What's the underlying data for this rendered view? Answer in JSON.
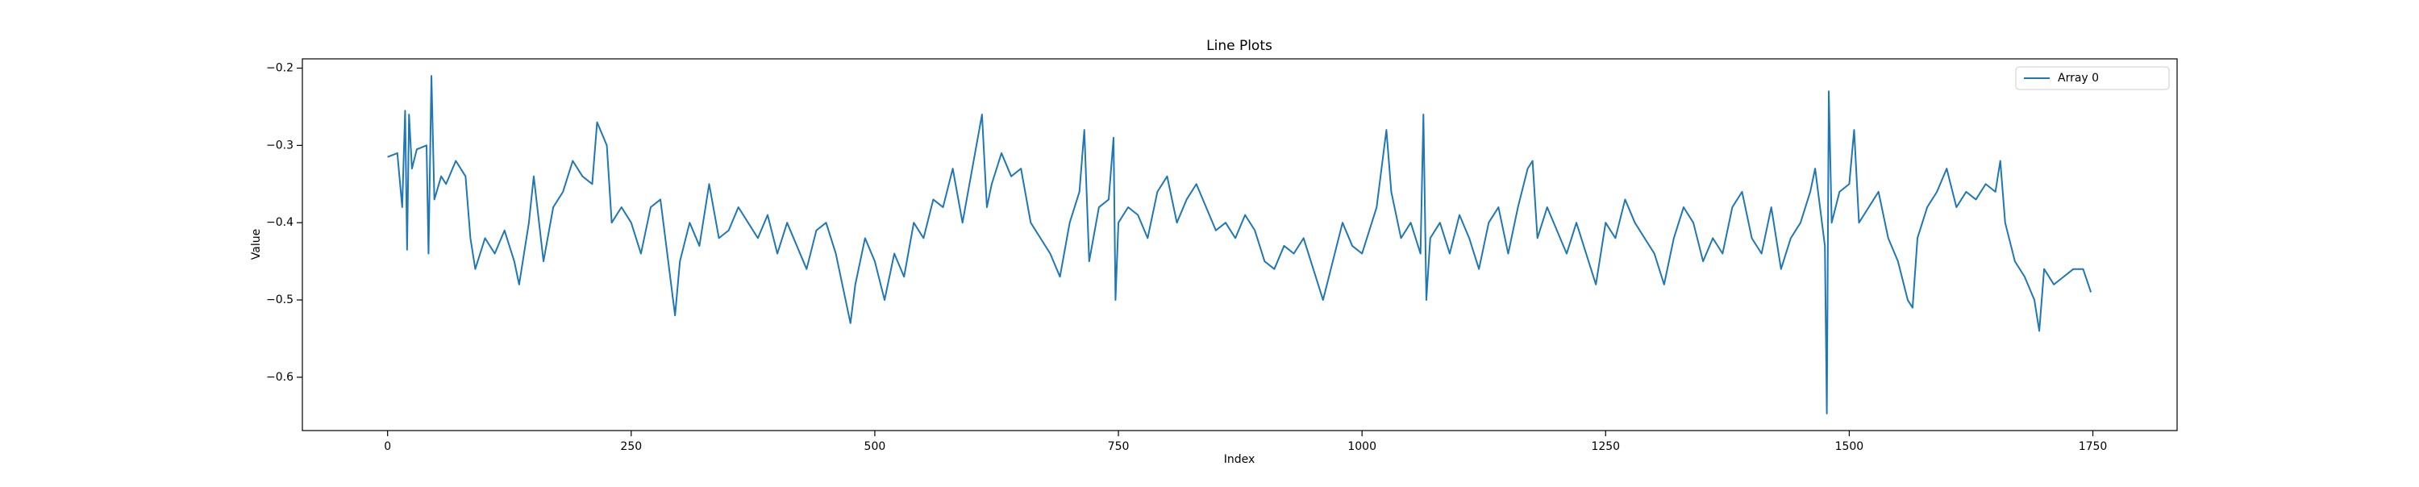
{
  "chart_data": {
    "type": "line",
    "title": "Line Plots",
    "xlabel": "Index",
    "ylabel": "Value",
    "x": [
      0,
      10,
      15,
      18,
      20,
      22,
      25,
      30,
      40,
      42,
      45,
      48,
      55,
      60,
      70,
      80,
      85,
      90,
      100,
      110,
      120,
      130,
      135,
      145,
      150,
      160,
      170,
      180,
      190,
      200,
      210,
      215,
      225,
      230,
      240,
      250,
      260,
      270,
      280,
      290,
      295,
      300,
      310,
      320,
      330,
      340,
      350,
      360,
      370,
      380,
      390,
      400,
      410,
      420,
      430,
      440,
      450,
      460,
      470,
      475,
      480,
      490,
      500,
      510,
      520,
      530,
      540,
      550,
      560,
      570,
      580,
      590,
      600,
      610,
      615,
      620,
      630,
      640,
      650,
      660,
      670,
      680,
      690,
      700,
      710,
      715,
      720,
      730,
      740,
      745,
      747,
      750,
      760,
      770,
      780,
      790,
      800,
      810,
      820,
      830,
      840,
      850,
      860,
      870,
      880,
      890,
      900,
      910,
      920,
      930,
      940,
      950,
      960,
      970,
      980,
      990,
      1000,
      1010,
      1015,
      1020,
      1025,
      1030,
      1040,
      1050,
      1060,
      1063,
      1066,
      1070,
      1080,
      1090,
      1100,
      1110,
      1120,
      1130,
      1140,
      1150,
      1160,
      1170,
      1175,
      1180,
      1190,
      1200,
      1210,
      1220,
      1230,
      1240,
      1250,
      1260,
      1270,
      1280,
      1290,
      1300,
      1310,
      1320,
      1330,
      1340,
      1350,
      1360,
      1370,
      1380,
      1390,
      1400,
      1410,
      1420,
      1430,
      1440,
      1450,
      1460,
      1465,
      1470,
      1475,
      1477,
      1479,
      1482,
      1490,
      1500,
      1505,
      1510,
      1520,
      1530,
      1540,
      1550,
      1560,
      1565,
      1570,
      1580,
      1590,
      1600,
      1610,
      1620,
      1630,
      1640,
      1650,
      1655,
      1660,
      1670,
      1680,
      1690,
      1695,
      1700,
      1710,
      1720,
      1730,
      1740,
      1748
    ],
    "series": [
      {
        "name": "Array 0",
        "color": "#1f77b4",
        "values": [
          -0.315,
          -0.31,
          -0.38,
          -0.255,
          -0.435,
          -0.26,
          -0.33,
          -0.305,
          -0.3,
          -0.44,
          -0.21,
          -0.37,
          -0.34,
          -0.35,
          -0.32,
          -0.34,
          -0.42,
          -0.46,
          -0.42,
          -0.44,
          -0.41,
          -0.45,
          -0.48,
          -0.4,
          -0.34,
          -0.45,
          -0.38,
          -0.36,
          -0.32,
          -0.34,
          -0.35,
          -0.27,
          -0.3,
          -0.4,
          -0.38,
          -0.4,
          -0.44,
          -0.38,
          -0.37,
          -0.47,
          -0.52,
          -0.45,
          -0.4,
          -0.43,
          -0.35,
          -0.42,
          -0.41,
          -0.38,
          -0.4,
          -0.42,
          -0.39,
          -0.44,
          -0.4,
          -0.43,
          -0.46,
          -0.41,
          -0.4,
          -0.44,
          -0.5,
          -0.53,
          -0.48,
          -0.42,
          -0.45,
          -0.5,
          -0.44,
          -0.47,
          -0.4,
          -0.42,
          -0.37,
          -0.38,
          -0.33,
          -0.4,
          -0.33,
          -0.26,
          -0.38,
          -0.35,
          -0.31,
          -0.34,
          -0.33,
          -0.4,
          -0.42,
          -0.44,
          -0.47,
          -0.4,
          -0.36,
          -0.28,
          -0.45,
          -0.38,
          -0.37,
          -0.29,
          -0.5,
          -0.4,
          -0.38,
          -0.39,
          -0.42,
          -0.36,
          -0.34,
          -0.4,
          -0.37,
          -0.35,
          -0.38,
          -0.41,
          -0.4,
          -0.42,
          -0.39,
          -0.41,
          -0.45,
          -0.46,
          -0.43,
          -0.44,
          -0.42,
          -0.46,
          -0.5,
          -0.45,
          -0.4,
          -0.43,
          -0.44,
          -0.4,
          -0.38,
          -0.33,
          -0.28,
          -0.36,
          -0.42,
          -0.4,
          -0.44,
          -0.26,
          -0.5,
          -0.42,
          -0.4,
          -0.44,
          -0.39,
          -0.42,
          -0.46,
          -0.4,
          -0.38,
          -0.44,
          -0.38,
          -0.33,
          -0.32,
          -0.42,
          -0.38,
          -0.41,
          -0.44,
          -0.4,
          -0.44,
          -0.48,
          -0.4,
          -0.42,
          -0.37,
          -0.4,
          -0.42,
          -0.44,
          -0.48,
          -0.42,
          -0.38,
          -0.4,
          -0.45,
          -0.42,
          -0.44,
          -0.38,
          -0.36,
          -0.42,
          -0.44,
          -0.38,
          -0.46,
          -0.42,
          -0.4,
          -0.36,
          -0.33,
          -0.38,
          -0.43,
          -0.647,
          -0.23,
          -0.4,
          -0.36,
          -0.35,
          -0.28,
          -0.4,
          -0.38,
          -0.36,
          -0.42,
          -0.45,
          -0.5,
          -0.51,
          -0.42,
          -0.38,
          -0.36,
          -0.33,
          -0.38,
          -0.36,
          -0.37,
          -0.35,
          -0.36,
          -0.32,
          -0.4,
          -0.45,
          -0.47,
          -0.5,
          -0.54,
          -0.46,
          -0.48,
          -0.47,
          -0.46,
          -0.46,
          -0.49
        ]
      }
    ],
    "xlim": [
      -87.45,
      1836.45
    ],
    "ylim": [
      -0.669,
      -0.188
    ],
    "xticks": [
      0,
      250,
      500,
      750,
      1000,
      1250,
      1500,
      1750
    ],
    "yticks": [
      {
        "value": -0.6,
        "label": "−0.6"
      },
      {
        "value": -0.5,
        "label": "−0.5"
      },
      {
        "value": -0.4,
        "label": "−0.4"
      },
      {
        "value": -0.3,
        "label": "−0.3"
      },
      {
        "value": -0.2,
        "label": "−0.2"
      }
    ],
    "legend": "upper right"
  }
}
